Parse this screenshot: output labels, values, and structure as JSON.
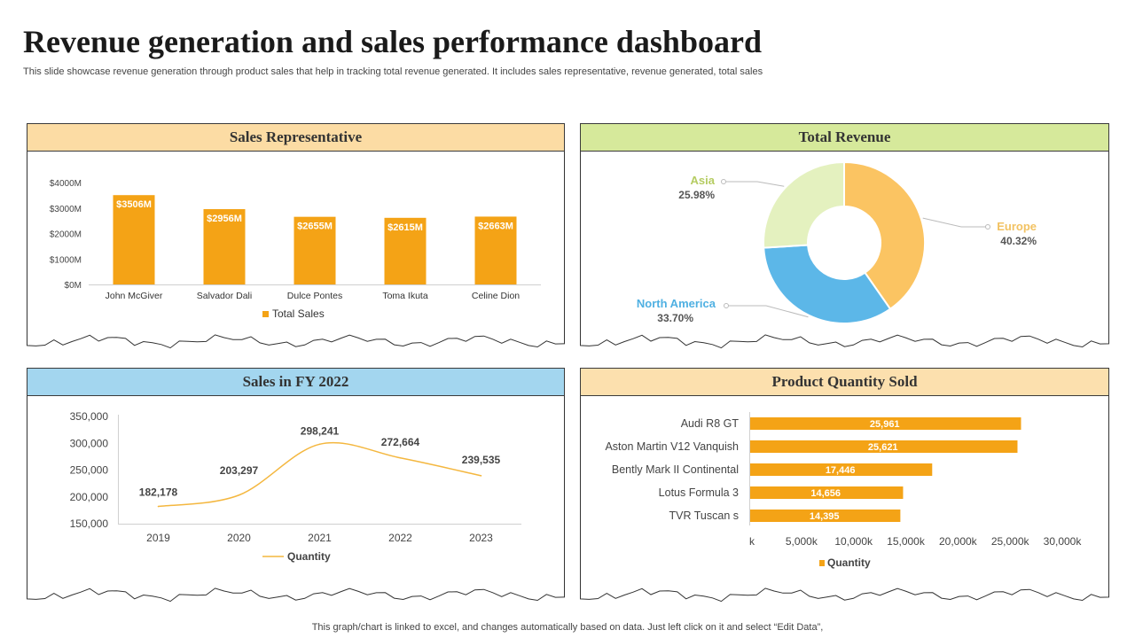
{
  "title": "Revenue generation and sales performance dashboard",
  "subtitle": "This slide showcase revenue generation through product sales that help in tracking total revenue generated. It includes sales representative, revenue generated, total sales",
  "footer": "This graph/chart is linked to excel,  and changes automatically based on data. Just left click on it and select “Edit Data”,",
  "colors": {
    "bar": "#f4a316",
    "line": "#f4b73f",
    "europe": "#fbc462",
    "north_america": "#5cb7e8",
    "asia": "#e4f1bf",
    "asia_label": "#b5cc62",
    "europe_label": "#f2c262",
    "na_label": "#4fb0e2"
  },
  "panels": {
    "sales_rep": {
      "title": "Sales Representative"
    },
    "total_revenue": {
      "title": "Total Revenue"
    },
    "sales_fy": {
      "title": "Sales in FY 2022"
    },
    "product_qty": {
      "title": "Product Quantity Sold"
    }
  },
  "chart_data": [
    {
      "id": "sales_rep",
      "type": "bar",
      "categories": [
        "John McGiver",
        "Salvador Dali",
        "Dulce Pontes",
        "Toma Ikuta",
        "Celine Dion"
      ],
      "values": [
        3506,
        2956,
        2655,
        2615,
        2663
      ],
      "value_labels": [
        "$3506M",
        "$2956M",
        "$2655M",
        "$2615M",
        "$2663M"
      ],
      "ylim": [
        0,
        4000
      ],
      "yticks": [
        0,
        1000,
        2000,
        3000,
        4000
      ],
      "ytick_labels": [
        "$0M",
        "$1000M",
        "$2000M",
        "$3000M",
        "$4000M"
      ],
      "legend": [
        "Total Sales"
      ],
      "legend_position": "bottom",
      "grid": false
    },
    {
      "id": "total_revenue",
      "type": "pie",
      "donut": true,
      "slices": [
        {
          "label": "Europe",
          "value": 40.32,
          "value_label": "40.32%"
        },
        {
          "label": "North America",
          "value": 33.7,
          "value_label": "33.70%"
        },
        {
          "label": "Asia",
          "value": 25.98,
          "value_label": "25.98%"
        }
      ]
    },
    {
      "id": "sales_fy",
      "type": "line",
      "x": [
        "2019",
        "2020",
        "2021",
        "2022",
        "2023"
      ],
      "values": [
        182178,
        203297,
        298241,
        272664,
        239535
      ],
      "value_labels": [
        "182,178",
        "203,297",
        "298,241",
        "272,664",
        "239,535"
      ],
      "ylim": [
        150000,
        350000
      ],
      "yticks": [
        150000,
        200000,
        250000,
        300000,
        350000
      ],
      "ytick_labels": [
        "150,000",
        "200,000",
        "250,000",
        "300,000",
        "350,000"
      ],
      "legend": [
        "Quantity"
      ],
      "legend_position": "bottom",
      "grid": false
    },
    {
      "id": "product_qty",
      "type": "bar",
      "orientation": "horizontal",
      "categories": [
        "Audi R8 GT",
        "Aston Martin V12 Vanquish",
        "Bently Mark II Continental",
        "Lotus Formula 3",
        "TVR Tuscan s"
      ],
      "values": [
        25961,
        25621,
        17446,
        14656,
        14395
      ],
      "value_labels": [
        "25,961",
        "25,621",
        "17,446",
        "14,656",
        "14,395"
      ],
      "xlim": [
        0,
        30000
      ],
      "xticks": [
        0,
        5000,
        10000,
        15000,
        20000,
        25000,
        30000
      ],
      "xtick_labels": [
        "k",
        "5,000k",
        "10,000k",
        "15,000k",
        "20,000k",
        "25,000k",
        "30,000k"
      ],
      "legend": [
        "Quantity"
      ],
      "legend_position": "bottom",
      "grid": false
    }
  ]
}
